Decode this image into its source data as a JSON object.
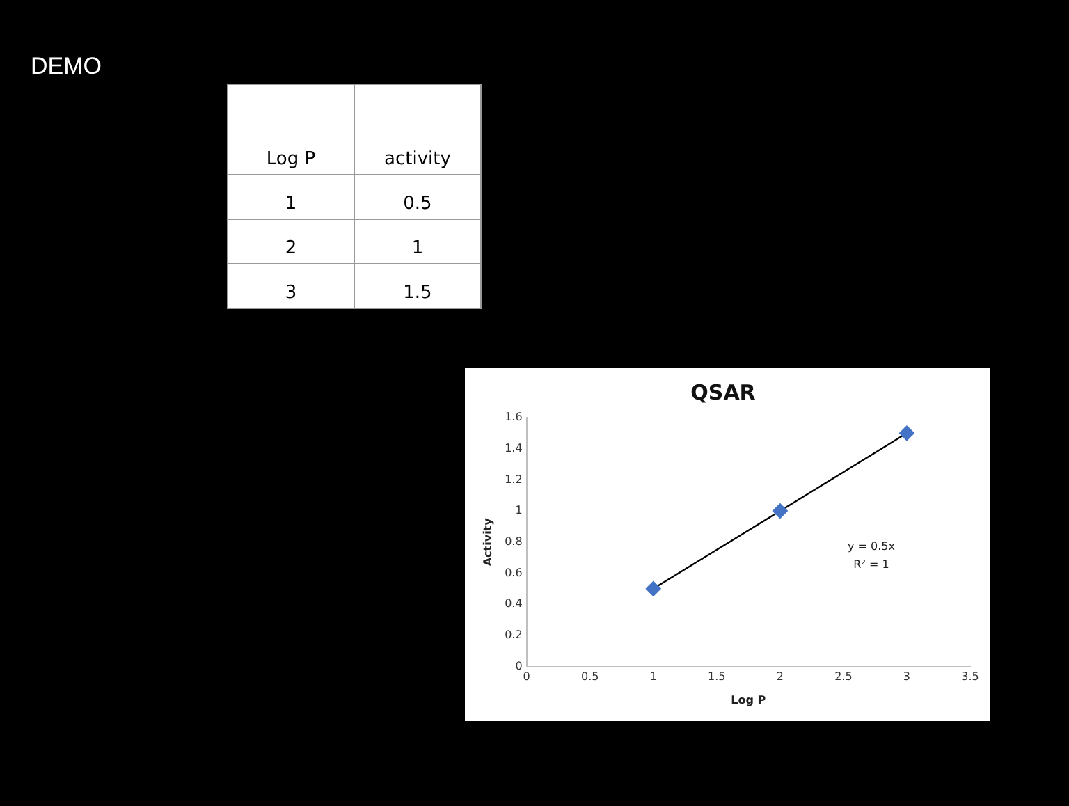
{
  "chart_data": {
    "type": "scatter",
    "title": "QSAR",
    "xlabel": "Log P",
    "ylabel": "Activity",
    "x": [
      1,
      2,
      3
    ],
    "series": [
      {
        "type": "scatter",
        "color": "#4472c4",
        "marker": "diamond",
        "values": [
          0.5,
          1,
          1.5
        ]
      },
      {
        "type": "line",
        "color": "#000000",
        "marker": "none",
        "x": [
          1,
          3
        ],
        "values": [
          0.5,
          1.5
        ]
      }
    ],
    "xlim": [
      0,
      3.5
    ],
    "xticks": [
      0,
      0.5,
      1,
      1.5,
      2,
      2.5,
      3,
      3.5
    ],
    "ylim": [
      0,
      1.6
    ],
    "yticks": [
      0,
      0.2,
      0.4,
      0.6,
      0.8,
      1,
      1.2,
      1.4,
      1.6
    ],
    "grid": false,
    "annotations": [
      "DEMO",
      "Log P",
      "activity",
      "1",
      "0.5",
      "2",
      "1",
      "3",
      "1.5",
      "y = 0.5x",
      "R² = 1"
    ]
  }
}
